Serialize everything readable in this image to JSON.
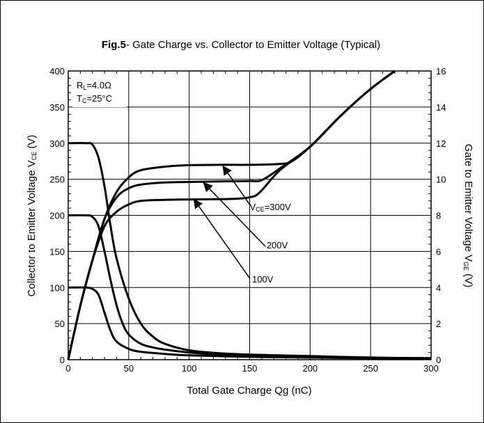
{
  "chart_data": {
    "type": "line",
    "title_bold": "Fig.5",
    "title_rest": "-  Gate Charge vs. Collector to Emitter Voltage  (Typical)",
    "xlabel": "Total Gate Charge Qg  (nC)",
    "ylabel_main": "Collector to Emitter Voltage V",
    "ylabel_sub": "CE",
    "ylabel_unit": "  (V)",
    "y2label_main": "Gate to Emitter Voltage V",
    "y2label_sub": "GE",
    "y2label_unit": "  (V)",
    "xlim": [
      0,
      300
    ],
    "ylim": [
      0,
      400
    ],
    "y2lim": [
      0,
      16
    ],
    "x_ticks": [
      "0",
      "50",
      "100",
      "150",
      "200",
      "250",
      "300"
    ],
    "y_ticks": [
      "0",
      "50",
      "100",
      "150",
      "200",
      "250",
      "300",
      "350",
      "400"
    ],
    "y2_ticks": [
      "0",
      "2",
      "4",
      "6",
      "8",
      "10",
      "12",
      "14",
      "16"
    ],
    "grid": true,
    "conditions": [
      {
        "main": "R",
        "sub": "L",
        "rest": "=4.0Ω"
      },
      {
        "main": "T",
        "sub": "C",
        "rest": "=25°C"
      }
    ],
    "series": [
      {
        "curve": "vce",
        "vce_level": 300,
        "axis": "left",
        "x": [
          0,
          15,
          20,
          25,
          30,
          35,
          40,
          50,
          60,
          70,
          80,
          100,
          125,
          150,
          200,
          250,
          300
        ],
        "y": [
          300,
          300,
          298,
          280,
          240,
          185,
          140,
          85,
          50,
          32,
          22,
          13,
          9,
          7,
          5,
          3,
          2
        ]
      },
      {
        "curve": "vce",
        "vce_level": 200,
        "axis": "left",
        "x": [
          0,
          15,
          20,
          25,
          30,
          35,
          40,
          45,
          50,
          60,
          70,
          80,
          100,
          125,
          150,
          200,
          250,
          300
        ],
        "y": [
          200,
          200,
          198,
          185,
          150,
          110,
          75,
          50,
          35,
          22,
          17,
          14,
          10,
          7,
          5,
          3,
          2,
          2
        ]
      },
      {
        "curve": "vce",
        "vce_level": 100,
        "axis": "left",
        "x": [
          0,
          15,
          20,
          25,
          30,
          35,
          40,
          50,
          60,
          80,
          100,
          150,
          200,
          300
        ],
        "y": [
          100,
          100,
          98,
          90,
          65,
          40,
          25,
          15,
          11,
          8,
          6,
          4,
          3,
          2
        ]
      },
      {
        "curve": "vge",
        "vce_level": 300,
        "axis": "right",
        "x": [
          0,
          10,
          20,
          30,
          40,
          50,
          60,
          80,
          100,
          125,
          150,
          175,
          185,
          200,
          225,
          250,
          270
        ],
        "y": [
          0,
          3,
          5.5,
          7.8,
          9.3,
          10.1,
          10.5,
          10.7,
          10.78,
          10.8,
          10.8,
          10.85,
          11.0,
          11.8,
          13.5,
          15.0,
          16.0
        ]
      },
      {
        "curve": "vge",
        "vce_level": 200,
        "axis": "right",
        "x": [
          0,
          10,
          20,
          30,
          40,
          50,
          60,
          80,
          100,
          125,
          150,
          160,
          175,
          200,
          225,
          250,
          270
        ],
        "y": [
          0,
          3,
          5.5,
          7.8,
          9.0,
          9.5,
          9.7,
          9.82,
          9.85,
          9.88,
          9.9,
          9.95,
          10.6,
          11.8,
          13.5,
          15.0,
          16.0
        ]
      },
      {
        "curve": "vge",
        "vce_level": 100,
        "axis": "right",
        "x": [
          0,
          10,
          20,
          30,
          40,
          50,
          60,
          80,
          100,
          125,
          140,
          150,
          158,
          175,
          200,
          225,
          250,
          270
        ],
        "y": [
          0,
          3,
          5.5,
          7.4,
          8.2,
          8.6,
          8.8,
          8.86,
          8.88,
          8.9,
          8.92,
          9.0,
          9.25,
          10.5,
          11.8,
          13.5,
          15.0,
          16.0
        ]
      }
    ],
    "annotations": [
      {
        "label_main": "V",
        "label_sub": "CE",
        "label_rest": "=300V",
        "label_x": 150,
        "label_y": 207,
        "arrow_from": [
          150,
          215
        ],
        "arrow_to": [
          128,
          268
        ]
      },
      {
        "label_main": "",
        "label_sub": "",
        "label_rest": "200V",
        "label_x": 164,
        "label_y": 154,
        "arrow_from": [
          163,
          157
        ],
        "arrow_to": [
          112,
          245
        ]
      },
      {
        "label_main": "",
        "label_sub": "",
        "label_rest": "100V",
        "label_x": 152,
        "label_y": 107,
        "arrow_from": [
          150,
          113
        ],
        "arrow_to": [
          104,
          222
        ]
      }
    ]
  }
}
